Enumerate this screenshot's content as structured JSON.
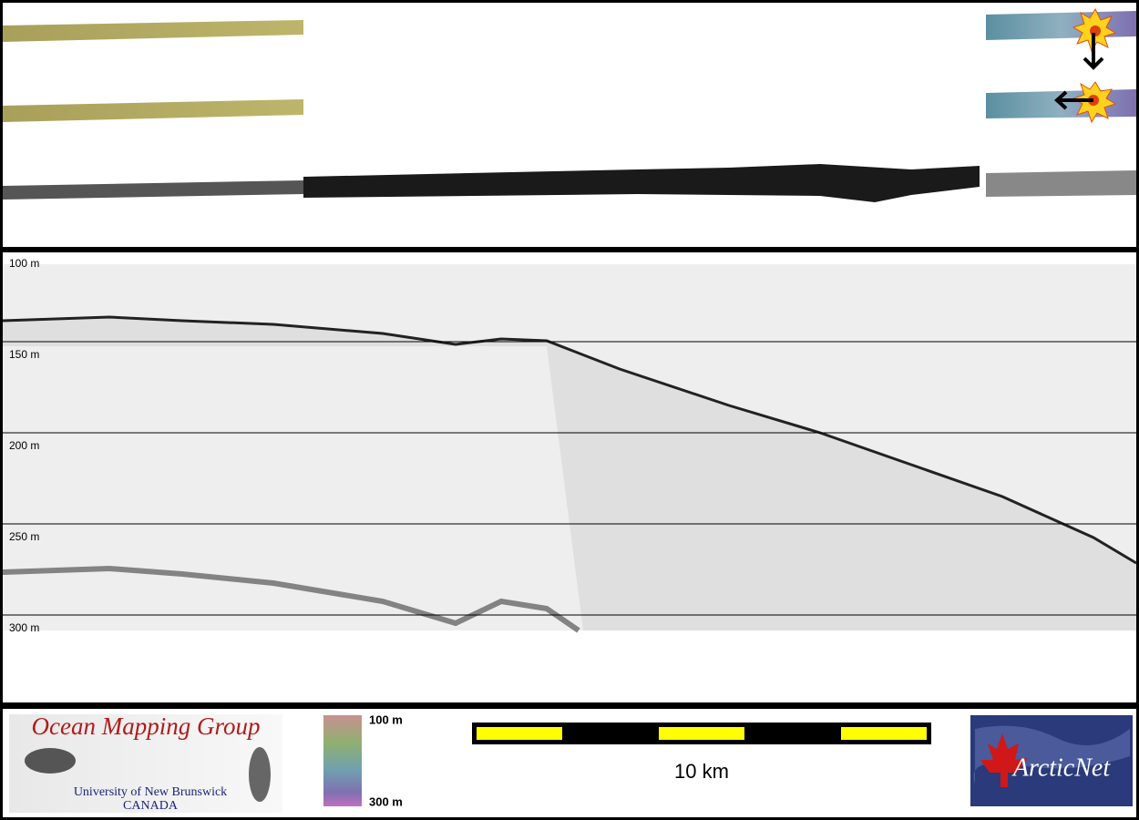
{
  "profile": {
    "depth_labels": [
      "100 m",
      "150 m",
      "200 m",
      "250 m",
      "300 m"
    ]
  },
  "legend": {
    "colorbar_top": "100 m",
    "colorbar_bottom": "300 m",
    "scale_bar": "10 km"
  },
  "logos": {
    "omg_title": "Ocean Mapping Group",
    "omg_university": "University of New Brunswick",
    "omg_country": "CANADA",
    "arcticnet": "ArcticNet"
  }
}
